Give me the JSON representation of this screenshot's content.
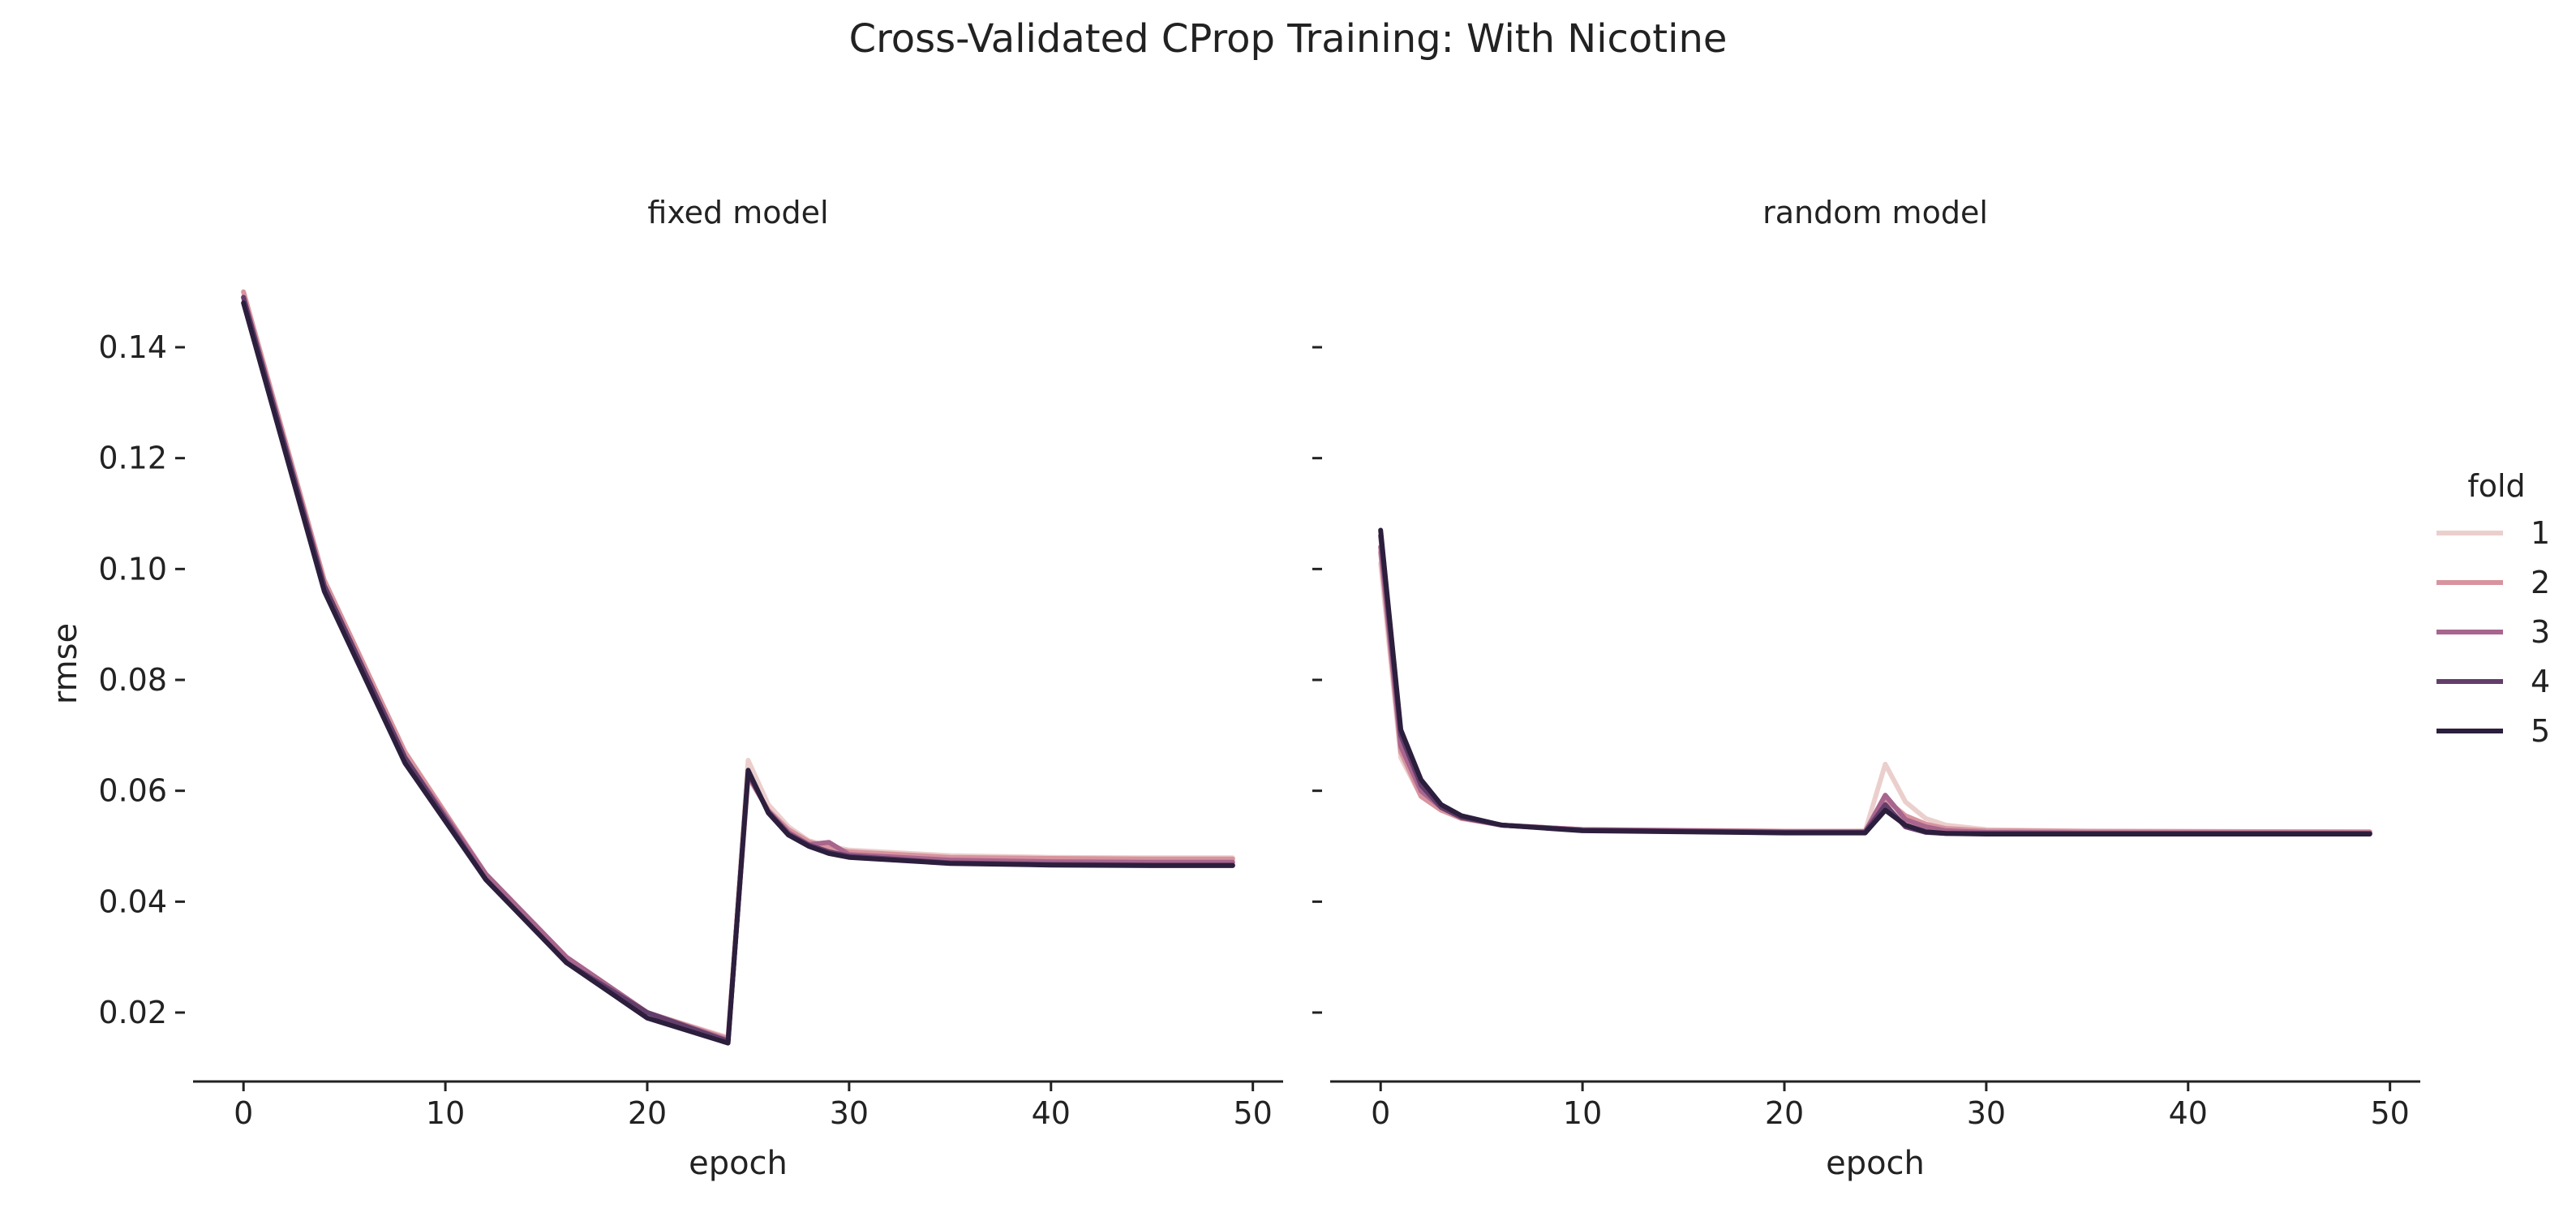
{
  "chart_data": {
    "type": "line",
    "title": "Cross-Validated CProp Training: With Nicotine",
    "shared": {
      "xlabel": "epoch",
      "ylabel": "rmse",
      "xlim": [
        -2.5,
        51.5
      ],
      "ylim": [
        0.008,
        0.152
      ],
      "xticks": [
        0,
        10,
        20,
        30,
        40,
        50
      ],
      "yticks": [
        0.02,
        0.04,
        0.06,
        0.08,
        0.1,
        0.12,
        0.14
      ],
      "ytick_labels": [
        "0.02",
        "0.04",
        "0.06",
        "0.08",
        "0.10",
        "0.12",
        "0.14"
      ],
      "grid": false
    },
    "legend": {
      "title": "fold",
      "placement": "right",
      "entries": [
        {
          "label": "1",
          "color": "#ebcfcd"
        },
        {
          "label": "2",
          "color": "#d8949e"
        },
        {
          "label": "3",
          "color": "#a8658d"
        },
        {
          "label": "4",
          "color": "#643e6b"
        },
        {
          "label": "5",
          "color": "#2c1e3d"
        }
      ]
    },
    "panels": [
      {
        "title": "fixed model",
        "series": [
          {
            "name": "1",
            "color": "#ebcfcd",
            "points": [
              [
                0,
                0.15
              ],
              [
                4,
                0.098
              ],
              [
                8,
                0.067
              ],
              [
                12,
                0.045
              ],
              [
                16,
                0.03
              ],
              [
                20,
                0.02
              ],
              [
                24,
                0.0155
              ],
              [
                25,
                0.0655
              ],
              [
                26,
                0.0575
              ],
              [
                27,
                0.0535
              ],
              [
                28,
                0.051
              ],
              [
                29,
                0.05
              ],
              [
                30,
                0.0493
              ],
              [
                35,
                0.0483
              ],
              [
                40,
                0.048
              ],
              [
                45,
                0.0479
              ],
              [
                49,
                0.0479
              ]
            ]
          },
          {
            "name": "2",
            "color": "#d8949e",
            "points": [
              [
                0,
                0.15
              ],
              [
                4,
                0.098
              ],
              [
                8,
                0.067
              ],
              [
                12,
                0.045
              ],
              [
                16,
                0.03
              ],
              [
                20,
                0.02
              ],
              [
                24,
                0.0153
              ],
              [
                25,
                0.0625
              ],
              [
                26,
                0.0565
              ],
              [
                27,
                0.053
              ],
              [
                28,
                0.0508
              ],
              [
                29,
                0.0498
              ],
              [
                30,
                0.049
              ],
              [
                35,
                0.048
              ],
              [
                40,
                0.0478
              ],
              [
                45,
                0.0477
              ],
              [
                49,
                0.0477
              ]
            ]
          },
          {
            "name": "3",
            "color": "#a8658d",
            "points": [
              [
                0,
                0.149
              ],
              [
                4,
                0.097
              ],
              [
                8,
                0.066
              ],
              [
                12,
                0.045
              ],
              [
                16,
                0.03
              ],
              [
                20,
                0.02
              ],
              [
                24,
                0.015
              ],
              [
                25,
                0.063
              ],
              [
                26,
                0.0563
              ],
              [
                27,
                0.0525
              ],
              [
                28,
                0.0503
              ],
              [
                29,
                0.0507
              ],
              [
                30,
                0.0485
              ],
              [
                35,
                0.0475
              ],
              [
                40,
                0.0472
              ],
              [
                45,
                0.0471
              ],
              [
                49,
                0.0471
              ]
            ]
          },
          {
            "name": "4",
            "color": "#643e6b",
            "points": [
              [
                0,
                0.149
              ],
              [
                4,
                0.097
              ],
              [
                8,
                0.066
              ],
              [
                12,
                0.044
              ],
              [
                16,
                0.029
              ],
              [
                20,
                0.02
              ],
              [
                24,
                0.0148
              ],
              [
                25,
                0.0632
              ],
              [
                26,
                0.0562
              ],
              [
                27,
                0.0522
              ],
              [
                28,
                0.0502
              ],
              [
                29,
                0.049
              ],
              [
                30,
                0.0482
              ],
              [
                35,
                0.047
              ],
              [
                40,
                0.0467
              ],
              [
                45,
                0.0466
              ],
              [
                49,
                0.0466
              ]
            ]
          },
          {
            "name": "5",
            "color": "#2c1e3d",
            "points": [
              [
                0,
                0.148
              ],
              [
                4,
                0.096
              ],
              [
                8,
                0.065
              ],
              [
                12,
                0.044
              ],
              [
                16,
                0.029
              ],
              [
                20,
                0.019
              ],
              [
                24,
                0.0145
              ],
              [
                25,
                0.0637
              ],
              [
                26,
                0.056
              ],
              [
                27,
                0.052
              ],
              [
                28,
                0.05
              ],
              [
                29,
                0.0487
              ],
              [
                30,
                0.048
              ],
              [
                35,
                0.0469
              ],
              [
                40,
                0.0466
              ],
              [
                45,
                0.0465
              ],
              [
                49,
                0.0465
              ]
            ]
          }
        ]
      },
      {
        "title": "random model",
        "series": [
          {
            "name": "1",
            "color": "#ebcfcd",
            "points": [
              [
                0,
                0.101
              ],
              [
                1,
                0.066
              ],
              [
                2,
                0.059
              ],
              [
                3,
                0.0565
              ],
              [
                4,
                0.055
              ],
              [
                6,
                0.0538
              ],
              [
                10,
                0.053
              ],
              [
                20,
                0.0527
              ],
              [
                24,
                0.0527
              ],
              [
                25,
                0.0648
              ],
              [
                26,
                0.058
              ],
              [
                27,
                0.055
              ],
              [
                28,
                0.0538
              ],
              [
                30,
                0.053
              ],
              [
                35,
                0.0527
              ],
              [
                49,
                0.0526
              ]
            ]
          },
          {
            "name": "2",
            "color": "#d8949e",
            "points": [
              [
                0,
                0.103
              ],
              [
                1,
                0.067
              ],
              [
                2,
                0.059
              ],
              [
                3,
                0.0565
              ],
              [
                4,
                0.055
              ],
              [
                6,
                0.0538
              ],
              [
                10,
                0.053
              ],
              [
                20,
                0.0527
              ],
              [
                24,
                0.0527
              ],
              [
                25,
                0.0585
              ],
              [
                26,
                0.0555
              ],
              [
                27,
                0.054
              ],
              [
                28,
                0.0532
              ],
              [
                30,
                0.0528
              ],
              [
                35,
                0.0527
              ],
              [
                49,
                0.0526
              ]
            ]
          },
          {
            "name": "3",
            "color": "#a8658d",
            "points": [
              [
                0,
                0.104
              ],
              [
                1,
                0.068
              ],
              [
                2,
                0.06
              ],
              [
                3,
                0.057
              ],
              [
                4,
                0.0552
              ],
              [
                6,
                0.0538
              ],
              [
                10,
                0.053
              ],
              [
                20,
                0.0526
              ],
              [
                24,
                0.0526
              ],
              [
                25,
                0.0592
              ],
              [
                26,
                0.0548
              ],
              [
                27,
                0.0535
              ],
              [
                28,
                0.0528
              ],
              [
                30,
                0.0525
              ],
              [
                35,
                0.0524
              ],
              [
                49,
                0.0524
              ]
            ]
          },
          {
            "name": "4",
            "color": "#643e6b",
            "points": [
              [
                0,
                0.106
              ],
              [
                1,
                0.07
              ],
              [
                2,
                0.061
              ],
              [
                3,
                0.057
              ],
              [
                4,
                0.0552
              ],
              [
                6,
                0.0538
              ],
              [
                10,
                0.0529
              ],
              [
                20,
                0.0525
              ],
              [
                24,
                0.0525
              ],
              [
                25,
                0.0575
              ],
              [
                26,
                0.0535
              ],
              [
                27,
                0.0525
              ],
              [
                28,
                0.0523
              ],
              [
                30,
                0.0523
              ],
              [
                35,
                0.0523
              ],
              [
                49,
                0.0523
              ]
            ]
          },
          {
            "name": "5",
            "color": "#2c1e3d",
            "points": [
              [
                0,
                0.107
              ],
              [
                1,
                0.071
              ],
              [
                2,
                0.062
              ],
              [
                3,
                0.0575
              ],
              [
                4,
                0.0555
              ],
              [
                6,
                0.0538
              ],
              [
                10,
                0.0528
              ],
              [
                20,
                0.0524
              ],
              [
                24,
                0.0524
              ],
              [
                25,
                0.0565
              ],
              [
                26,
                0.0538
              ],
              [
                27,
                0.0526
              ],
              [
                28,
                0.0523
              ],
              [
                30,
                0.0522
              ],
              [
                35,
                0.0522
              ],
              [
                49,
                0.0522
              ]
            ]
          }
        ]
      }
    ]
  }
}
